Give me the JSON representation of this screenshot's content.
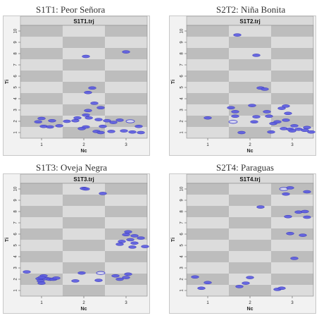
{
  "panels": [
    {
      "caption": "S1T1: Peor Señora",
      "chart_data": {
        "type": "scatter",
        "title": "S1T1.trj",
        "xlabel": "Nc",
        "ylabel": "Ti",
        "x_ticks": [
          "1",
          "2",
          "3"
        ],
        "y_ticks": [
          "1",
          "2",
          "3",
          "4",
          "5",
          "6",
          "7",
          "8",
          "9",
          "10"
        ],
        "xlim": [
          0.5,
          3.5
        ],
        "ylim": [
          0.5,
          10.5
        ],
        "grid": "checkerboard",
        "points": [
          {
            "x": 1.0,
            "y": 2.25
          },
          {
            "x": 1.25,
            "y": 2.05
          },
          {
            "x": 0.92,
            "y": 1.95
          },
          {
            "x": 1.05,
            "y": 1.55
          },
          {
            "x": 1.2,
            "y": 1.5
          },
          {
            "x": 1.42,
            "y": 1.6
          },
          {
            "x": 1.6,
            "y": 2.0
          },
          {
            "x": 1.8,
            "y": 2.05
          },
          {
            "x": 1.85,
            "y": 2.3
          },
          {
            "x": 1.95,
            "y": 1.35
          },
          {
            "x": 2.05,
            "y": 1.5
          },
          {
            "x": 2.12,
            "y": 2.3
          },
          {
            "x": 2.35,
            "y": 2.15
          },
          {
            "x": 2.45,
            "y": 1.55
          },
          {
            "x": 2.55,
            "y": 2.05
          },
          {
            "x": 2.3,
            "y": 1.1
          },
          {
            "x": 2.4,
            "y": 1.0
          },
          {
            "x": 2.05,
            "y": 2.55
          },
          {
            "x": 2.1,
            "y": 2.95
          },
          {
            "x": 2.25,
            "y": 3.6
          },
          {
            "x": 2.4,
            "y": 3.2
          },
          {
            "x": 2.1,
            "y": 4.55
          },
          {
            "x": 2.2,
            "y": 4.95
          },
          {
            "x": 2.05,
            "y": 7.75
          },
          {
            "x": 2.65,
            "y": 1.1
          },
          {
            "x": 2.7,
            "y": 1.9
          },
          {
            "x": 2.95,
            "y": 1.15
          },
          {
            "x": 2.85,
            "y": 2.1
          },
          {
            "x": 3.1,
            "y": 2.0,
            "hollow": true
          },
          {
            "x": 3.3,
            "y": 1.55
          },
          {
            "x": 3.35,
            "y": 1.0
          },
          {
            "x": 3.15,
            "y": 1.05
          },
          {
            "x": 3.0,
            "y": 8.15
          }
        ]
      }
    },
    {
      "caption": "S2T2: Niña Bonita",
      "chart_data": {
        "type": "scatter",
        "title": "S1T2.trj",
        "xlabel": "Nc",
        "ylabel": "Ti",
        "x_ticks": [
          "1",
          "2",
          "3"
        ],
        "y_ticks": [
          "1",
          "2",
          "3",
          "4",
          "5",
          "6",
          "7",
          "8",
          "9",
          "10"
        ],
        "xlim": [
          0.5,
          3.5
        ],
        "ylim": [
          0.5,
          10.5
        ],
        "grid": "checkerboard",
        "points": [
          {
            "x": 1.0,
            "y": 2.3
          },
          {
            "x": 1.55,
            "y": 3.2
          },
          {
            "x": 1.65,
            "y": 2.85
          },
          {
            "x": 1.6,
            "y": 1.95,
            "hollow": true
          },
          {
            "x": 1.65,
            "y": 2.45
          },
          {
            "x": 1.8,
            "y": 1.0
          },
          {
            "x": 1.7,
            "y": 9.65
          },
          {
            "x": 2.05,
            "y": 3.4
          },
          {
            "x": 2.1,
            "y": 1.95
          },
          {
            "x": 2.15,
            "y": 2.4
          },
          {
            "x": 2.15,
            "y": 7.85
          },
          {
            "x": 2.25,
            "y": 4.95
          },
          {
            "x": 2.35,
            "y": 4.85
          },
          {
            "x": 2.4,
            "y": 2.85
          },
          {
            "x": 2.45,
            "y": 2.45
          },
          {
            "x": 2.5,
            "y": 1.05
          },
          {
            "x": 2.55,
            "y": 1.8
          },
          {
            "x": 2.65,
            "y": 1.95
          },
          {
            "x": 2.75,
            "y": 3.15
          },
          {
            "x": 2.85,
            "y": 3.35
          },
          {
            "x": 2.8,
            "y": 1.35
          },
          {
            "x": 2.95,
            "y": 1.3
          },
          {
            "x": 3.0,
            "y": 1.15
          },
          {
            "x": 3.05,
            "y": 1.6
          },
          {
            "x": 3.15,
            "y": 1.3
          },
          {
            "x": 3.3,
            "y": 1.2
          },
          {
            "x": 3.35,
            "y": 1.45
          },
          {
            "x": 3.45,
            "y": 1.05
          },
          {
            "x": 2.85,
            "y": 2.1
          },
          {
            "x": 2.9,
            "y": 2.7
          }
        ]
      }
    },
    {
      "caption": "S1T3: Oveja Negra",
      "chart_data": {
        "type": "scatter",
        "title": "S1T3.trj",
        "xlabel": "Nc",
        "ylabel": "Ti",
        "x_ticks": [
          "1",
          "2",
          "3"
        ],
        "y_ticks": [
          "1",
          "2",
          "3",
          "4",
          "5",
          "6",
          "7",
          "8",
          "9",
          "10"
        ],
        "xlim": [
          0.5,
          3.5
        ],
        "ylim": [
          0.5,
          10.5
        ],
        "grid": "checkerboard",
        "points": [
          {
            "x": 0.65,
            "y": 2.65
          },
          {
            "x": 0.95,
            "y": 2.05
          },
          {
            "x": 0.98,
            "y": 1.85
          },
          {
            "x": 1.0,
            "y": 1.65
          },
          {
            "x": 1.05,
            "y": 2.3
          },
          {
            "x": 1.12,
            "y": 2.05
          },
          {
            "x": 1.2,
            "y": 2.0
          },
          {
            "x": 1.28,
            "y": 2.0
          },
          {
            "x": 1.35,
            "y": 2.1
          },
          {
            "x": 1.0,
            "y": 2.15
          },
          {
            "x": 1.8,
            "y": 1.85
          },
          {
            "x": 1.95,
            "y": 2.55
          },
          {
            "x": 2.35,
            "y": 1.9
          },
          {
            "x": 2.4,
            "y": 2.55,
            "hollow": true
          },
          {
            "x": 2.0,
            "y": 10.05
          },
          {
            "x": 2.05,
            "y": 10.0
          },
          {
            "x": 2.45,
            "y": 9.6
          },
          {
            "x": 2.75,
            "y": 2.3
          },
          {
            "x": 2.85,
            "y": 2.0
          },
          {
            "x": 3.0,
            "y": 2.15
          },
          {
            "x": 3.05,
            "y": 2.45
          },
          {
            "x": 2.85,
            "y": 5.1
          },
          {
            "x": 2.9,
            "y": 5.35
          },
          {
            "x": 3.0,
            "y": 5.95
          },
          {
            "x": 3.05,
            "y": 6.2
          },
          {
            "x": 3.1,
            "y": 5.5
          },
          {
            "x": 3.15,
            "y": 4.85
          },
          {
            "x": 3.2,
            "y": 5.2
          },
          {
            "x": 3.35,
            "y": 5.65
          },
          {
            "x": 3.45,
            "y": 4.9
          },
          {
            "x": 3.2,
            "y": 5.85
          }
        ]
      }
    },
    {
      "caption": "S2T4: Paraguas",
      "chart_data": {
        "type": "scatter",
        "title": "S1T4.trj",
        "xlabel": "Nc",
        "ylabel": "Ti",
        "x_ticks": [
          "1",
          "2",
          "3"
        ],
        "y_ticks": [
          "1",
          "2",
          "3",
          "4",
          "5",
          "6",
          "7",
          "8",
          "9",
          "10"
        ],
        "xlim": [
          0.5,
          3.5
        ],
        "ylim": [
          0.5,
          10.5
        ],
        "grid": "checkerboard",
        "points": [
          {
            "x": 0.7,
            "y": 2.2
          },
          {
            "x": 0.85,
            "y": 1.2
          },
          {
            "x": 1.0,
            "y": 1.7
          },
          {
            "x": 1.75,
            "y": 1.35
          },
          {
            "x": 1.9,
            "y": 1.65
          },
          {
            "x": 2.0,
            "y": 2.15
          },
          {
            "x": 2.25,
            "y": 8.4
          },
          {
            "x": 2.65,
            "y": 1.1
          },
          {
            "x": 2.75,
            "y": 1.2
          },
          {
            "x": 2.9,
            "y": 7.55
          },
          {
            "x": 2.95,
            "y": 6.05
          },
          {
            "x": 3.05,
            "y": 3.85
          },
          {
            "x": 3.15,
            "y": 7.95
          },
          {
            "x": 3.25,
            "y": 5.9
          },
          {
            "x": 3.3,
            "y": 8.0
          },
          {
            "x": 3.35,
            "y": 7.5
          },
          {
            "x": 2.8,
            "y": 10.0,
            "hollow": true
          },
          {
            "x": 2.95,
            "y": 10.1
          },
          {
            "x": 2.85,
            "y": 9.55
          },
          {
            "x": 3.35,
            "y": 9.75
          }
        ]
      }
    }
  ]
}
